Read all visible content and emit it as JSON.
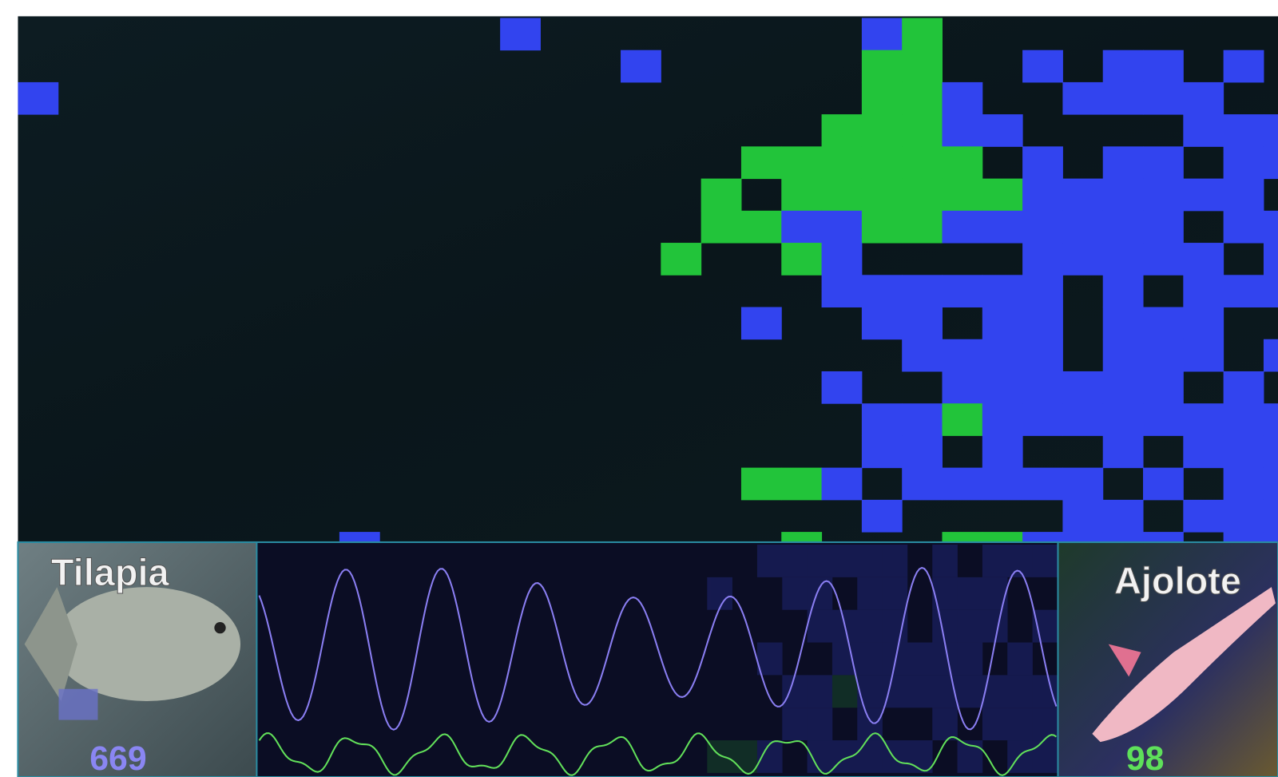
{
  "species": [
    {
      "name": "Tilapia",
      "count": 669
    },
    {
      "name": "Ajolote",
      "count": 98
    }
  ]
}
